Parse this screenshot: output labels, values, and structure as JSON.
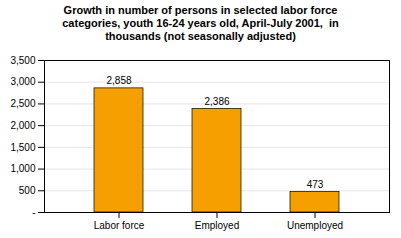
{
  "chart_data": {
    "type": "bar",
    "title": "Growth in number of persons in selected labor force\ncategories, youth 16-24 years old, April-July 2001,  in\nthousands (not seasonally adjusted)",
    "categories": [
      "Labor force",
      "Employed",
      "Unemployed"
    ],
    "values": [
      2858,
      2386,
      473
    ],
    "value_labels": [
      "2,858",
      "2,386",
      "473"
    ],
    "data_labels": true,
    "color": "#F5A000",
    "ylim": [
      0,
      3500
    ],
    "yticks": [
      {
        "value": 0,
        "label": "-"
      },
      500,
      {
        "value": 1000,
        "label": "1,000"
      },
      {
        "value": 1500,
        "label": "1,500"
      },
      {
        "value": 2000,
        "label": "2,000"
      },
      {
        "value": 2500,
        "label": "2,500"
      },
      {
        "value": 3000,
        "label": "3,000"
      },
      {
        "value": 3500,
        "label": "3,500"
      }
    ],
    "grid": true
  }
}
